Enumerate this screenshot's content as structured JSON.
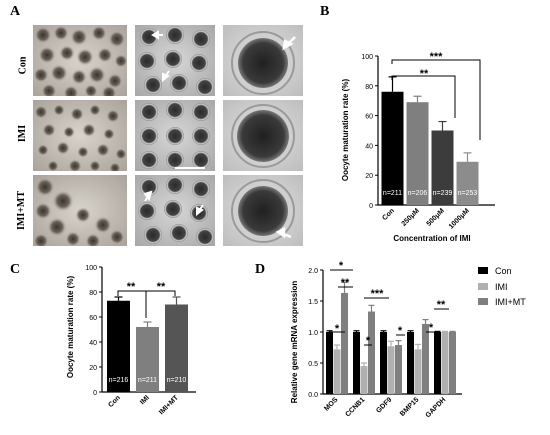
{
  "panel_A": {
    "letter": "A",
    "rows": [
      "Con",
      "IMI",
      "IMI+MT"
    ]
  },
  "panel_B": {
    "letter": "B",
    "chart_data": {
      "type": "bar",
      "ylabel": "Oocyte maturation rate (%)",
      "xlabel": "Concentration of IMI",
      "ylim": [
        0,
        100
      ],
      "yticks": [
        0,
        20,
        40,
        60,
        80,
        100
      ],
      "categories": [
        "Con",
        "250μM",
        "500μM",
        "1000μM"
      ],
      "values": [
        76,
        69,
        50,
        29
      ],
      "errors": [
        10,
        4,
        6,
        6
      ],
      "n_labels": [
        "n=211",
        "n=206",
        "n=239",
        "n=253"
      ],
      "colors": [
        "#000000",
        "#7f7f7f",
        "#3c3c3c",
        "#8c8c8c"
      ],
      "significance": [
        "***",
        "**"
      ]
    }
  },
  "panel_C": {
    "letter": "C",
    "chart_data": {
      "type": "bar",
      "ylabel": "Oocyte maturation rate (%)",
      "ylim": [
        0,
        100
      ],
      "yticks": [
        0,
        20,
        40,
        60,
        80,
        100
      ],
      "categories": [
        "Con",
        "IMI",
        "IMI+MT"
      ],
      "values": [
        73,
        52,
        70
      ],
      "errors": [
        3,
        4,
        6
      ],
      "n_labels": [
        "n=216",
        "n=211",
        "n=210"
      ],
      "colors": [
        "#000000",
        "#7f7f7f",
        "#555555"
      ],
      "significance": [
        "**",
        "**"
      ]
    }
  },
  "panel_D": {
    "letter": "D",
    "chart_data": {
      "type": "bar",
      "ylabel": "Relative gene mRNA expression",
      "ylim": [
        0,
        2.0
      ],
      "yticks": [
        0.0,
        0.5,
        1.0,
        1.5,
        2.0
      ],
      "categories": [
        "MOS",
        "CCNB1",
        "GDF9",
        "BMP15",
        "GAPDH"
      ],
      "series": [
        {
          "name": "Con",
          "color": "#000000",
          "values": [
            1.0,
            1.0,
            1.0,
            1.0,
            1.0
          ],
          "errors": [
            0.02,
            0.02,
            0.02,
            0.02,
            0.01
          ]
        },
        {
          "name": "IMI",
          "color": "#b0b0b0",
          "values": [
            0.72,
            0.45,
            0.77,
            0.72,
            1.0
          ],
          "errors": [
            0.07,
            0.05,
            0.08,
            0.08,
            0.01
          ]
        },
        {
          "name": "IMI+MT",
          "color": "#7f7f7f",
          "values": [
            1.63,
            1.33,
            0.79,
            1.13,
            1.0
          ],
          "errors": [
            0.17,
            0.1,
            0.07,
            0.07,
            0.01
          ]
        }
      ],
      "significance": [
        "*",
        "**",
        "*",
        "*",
        "***",
        "*",
        "*",
        "**"
      ],
      "legend_position": "right"
    }
  }
}
